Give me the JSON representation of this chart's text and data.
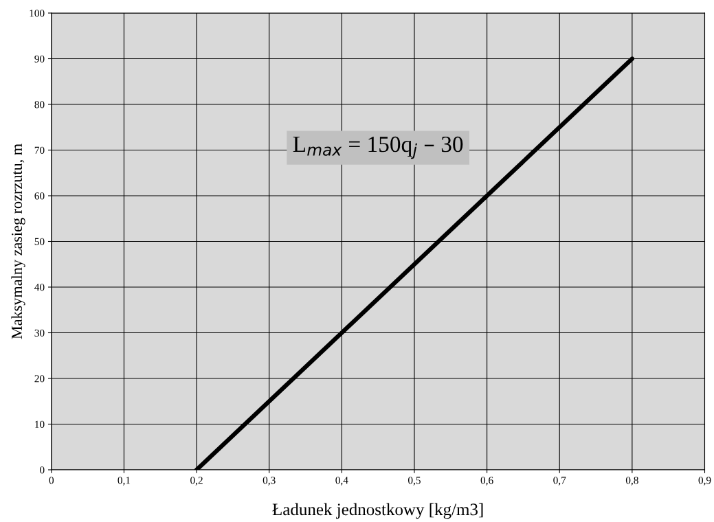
{
  "chart_data": {
    "type": "line",
    "xlabel": "Ładunek jednostkowy [kg/m3]",
    "ylabel": "Maksymalny zasieg rozrzutu, m",
    "x": [
      0.2,
      0.8
    ],
    "series": [
      {
        "color": "#000000",
        "values": [
          0,
          90
        ]
      }
    ],
    "xlim": [
      0,
      0.9
    ],
    "xticks": [
      0,
      {
        "value": 0.1,
        "label": "0,1"
      },
      {
        "value": 0.2,
        "label": "0,2"
      },
      {
        "value": 0.3,
        "label": "0,3"
      },
      {
        "value": 0.4,
        "label": "0,4"
      },
      {
        "value": 0.5,
        "label": "0,5"
      },
      {
        "value": 0.6,
        "label": "0,6"
      },
      {
        "value": 0.7,
        "label": "0,7"
      },
      {
        "value": 0.8,
        "label": "0,8"
      },
      {
        "value": 0.9,
        "label": "0,9"
      }
    ],
    "ylim": [
      0,
      100
    ],
    "yticks": [
      0,
      10,
      20,
      30,
      40,
      50,
      60,
      70,
      80,
      90,
      100
    ],
    "grid": true,
    "marker": "none",
    "line_style": "solid",
    "annotations": [
      "L$_{max}$ = 150q$_{j}$ – 30"
    ]
  }
}
